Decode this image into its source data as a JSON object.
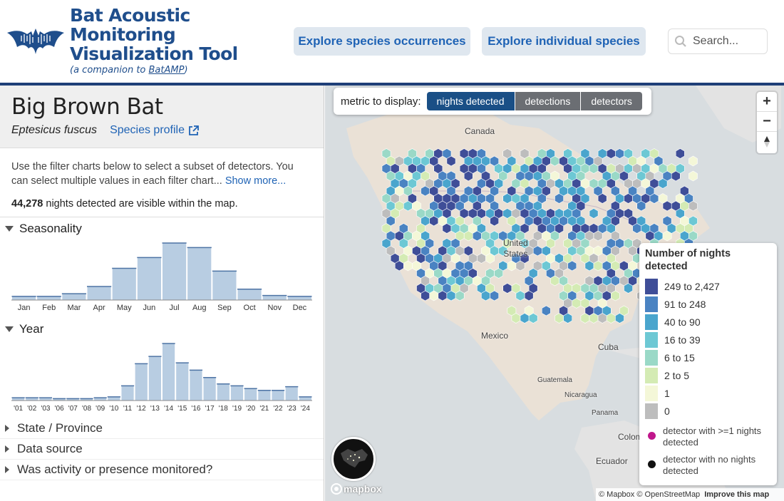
{
  "header": {
    "title": "Bat Acoustic\nMonitoring\nVisualization Tool",
    "subtitle_prefix": "(a companion to ",
    "subtitle_link": "BatAMP",
    "subtitle_suffix": ")",
    "nav": [
      "Explore species occurrences",
      "Explore individual species"
    ],
    "search_placeholder": "Search..."
  },
  "species": {
    "common_name": "Big Brown Bat",
    "scientific_name": "Eptesicus fuscus",
    "profile_link": "Species profile"
  },
  "intro": {
    "text": "Use the filter charts below to select a subset of detectors. You can select multiple values in each filter chart...",
    "show_more": "Show more..."
  },
  "count": {
    "number": "44,278",
    "suffix": " nights detected are visible within the map."
  },
  "sections": {
    "seasonality": "Seasonality",
    "year": "Year",
    "state": "State / Province",
    "data_source": "Data source",
    "monitored": "Was activity or presence monitored?"
  },
  "chart_data": [
    {
      "type": "bar",
      "title": "Seasonality",
      "categories": [
        "Jan",
        "Feb",
        "Mar",
        "Apr",
        "May",
        "Jun",
        "Jul",
        "Aug",
        "Sep",
        "Oct",
        "Nov",
        "Dec"
      ],
      "values": [
        4,
        4,
        7,
        15,
        35,
        47,
        63,
        58,
        32,
        12,
        5,
        4
      ]
    },
    {
      "type": "bar",
      "title": "Year",
      "categories": [
        "'01",
        "'02",
        "'03",
        "'06",
        "'07",
        "'08",
        "'09",
        "'10",
        "'11",
        "'12",
        "'13",
        "'14",
        "'15",
        "'16",
        "'17",
        "'18",
        "'19",
        "'20",
        "'21",
        "'22",
        "'23",
        "'24"
      ],
      "values": [
        3,
        3,
        3,
        2,
        2,
        2,
        3,
        4,
        16,
        40,
        48,
        62,
        41,
        33,
        25,
        18,
        16,
        13,
        11,
        11,
        15,
        4
      ]
    }
  ],
  "metric": {
    "label": "metric to display:",
    "options": [
      "nights detected",
      "detections",
      "detectors"
    ],
    "selected": "nights detected"
  },
  "map_labels": [
    "Canada",
    "United\nStates",
    "Mexico",
    "Cuba",
    "Guatemala",
    "Nicaragua",
    "Panama",
    "Colom",
    "Ecuador"
  ],
  "legend": {
    "title": "Number of nights detected",
    "items": [
      {
        "label": "249 to 2,427",
        "color": "#3f4e98"
      },
      {
        "label": "91 to 248",
        "color": "#4a83c2"
      },
      {
        "label": "40 to 90",
        "color": "#4aa5cd"
      },
      {
        "label": "16 to 39",
        "color": "#6dc8d4"
      },
      {
        "label": "6 to 15",
        "color": "#9ad9c7"
      },
      {
        "label": "2 to 5",
        "color": "#d4ebb4"
      },
      {
        "label": "1",
        "color": "#f4f7d8"
      },
      {
        "label": "0",
        "color": "#bdbdbd"
      }
    ],
    "detected_label": "detector with >=1 nights detected",
    "detected_color": "#c0178b",
    "none_label": "detector with no nights detected",
    "none_color": "#111111"
  },
  "attribution": {
    "mapbox": "© Mapbox",
    "osm": "© OpenStreetMap",
    "improve": "Improve this map"
  },
  "mapbox_logo": "mapbox"
}
